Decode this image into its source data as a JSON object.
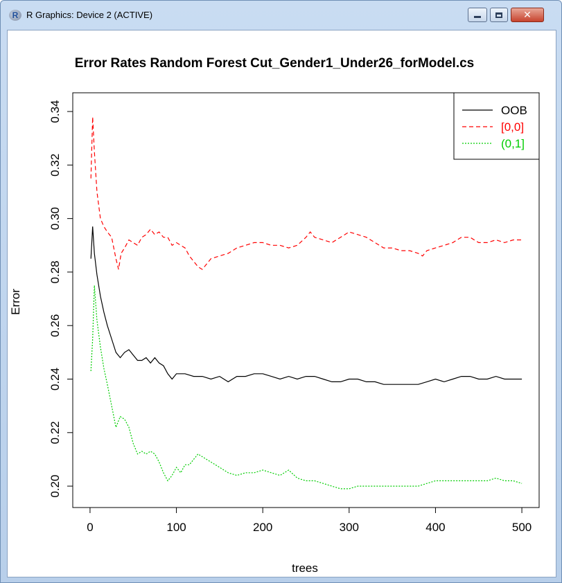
{
  "window": {
    "title": "R Graphics: Device 2 (ACTIVE)",
    "icon": "r-logo-icon",
    "icon_letter": "R",
    "close_glyph": "✕"
  },
  "chart_data": {
    "type": "line",
    "title": "Error Rates Random Forest Cut_Gender1_Under26_forModel.cs",
    "xlabel": "trees",
    "ylabel": "Error",
    "xlim": [
      -20,
      520
    ],
    "ylim": [
      0.192,
      0.347
    ],
    "xticks": [
      0,
      100,
      200,
      300,
      400,
      500
    ],
    "yticks": [
      0.2,
      0.22,
      0.24,
      0.26,
      0.28,
      0.3,
      0.32,
      0.34
    ],
    "legend_position": "top-right",
    "series": [
      {
        "name": "OOB",
        "color": "#000000",
        "dash": "solid",
        "points": [
          [
            1,
            0.285
          ],
          [
            3,
            0.297
          ],
          [
            5,
            0.287
          ],
          [
            8,
            0.279
          ],
          [
            12,
            0.271
          ],
          [
            16,
            0.265
          ],
          [
            20,
            0.26
          ],
          [
            25,
            0.255
          ],
          [
            30,
            0.25
          ],
          [
            35,
            0.248
          ],
          [
            40,
            0.25
          ],
          [
            45,
            0.251
          ],
          [
            50,
            0.249
          ],
          [
            55,
            0.247
          ],
          [
            60,
            0.247
          ],
          [
            65,
            0.248
          ],
          [
            70,
            0.246
          ],
          [
            75,
            0.248
          ],
          [
            80,
            0.246
          ],
          [
            85,
            0.245
          ],
          [
            90,
            0.242
          ],
          [
            95,
            0.24
          ],
          [
            100,
            0.242
          ],
          [
            110,
            0.242
          ],
          [
            120,
            0.241
          ],
          [
            130,
            0.241
          ],
          [
            140,
            0.24
          ],
          [
            150,
            0.241
          ],
          [
            160,
            0.239
          ],
          [
            170,
            0.241
          ],
          [
            180,
            0.241
          ],
          [
            190,
            0.242
          ],
          [
            200,
            0.242
          ],
          [
            210,
            0.241
          ],
          [
            220,
            0.24
          ],
          [
            230,
            0.241
          ],
          [
            240,
            0.24
          ],
          [
            250,
            0.241
          ],
          [
            260,
            0.241
          ],
          [
            270,
            0.24
          ],
          [
            280,
            0.239
          ],
          [
            290,
            0.239
          ],
          [
            300,
            0.24
          ],
          [
            310,
            0.24
          ],
          [
            320,
            0.239
          ],
          [
            330,
            0.239
          ],
          [
            340,
            0.238
          ],
          [
            350,
            0.238
          ],
          [
            360,
            0.238
          ],
          [
            370,
            0.238
          ],
          [
            380,
            0.238
          ],
          [
            390,
            0.239
          ],
          [
            400,
            0.24
          ],
          [
            410,
            0.239
          ],
          [
            420,
            0.24
          ],
          [
            430,
            0.241
          ],
          [
            440,
            0.241
          ],
          [
            450,
            0.24
          ],
          [
            460,
            0.24
          ],
          [
            470,
            0.241
          ],
          [
            480,
            0.24
          ],
          [
            490,
            0.24
          ],
          [
            500,
            0.24
          ]
        ]
      },
      {
        "name": "[0,0]",
        "color": "#ff0000",
        "dash": "dashed",
        "points": [
          [
            1,
            0.315
          ],
          [
            3,
            0.338
          ],
          [
            5,
            0.325
          ],
          [
            8,
            0.31
          ],
          [
            12,
            0.3
          ],
          [
            16,
            0.297
          ],
          [
            20,
            0.295
          ],
          [
            25,
            0.293
          ],
          [
            30,
            0.285
          ],
          [
            33,
            0.281
          ],
          [
            36,
            0.287
          ],
          [
            40,
            0.289
          ],
          [
            45,
            0.292
          ],
          [
            50,
            0.291
          ],
          [
            55,
            0.29
          ],
          [
            60,
            0.293
          ],
          [
            65,
            0.294
          ],
          [
            70,
            0.296
          ],
          [
            75,
            0.294
          ],
          [
            80,
            0.295
          ],
          [
            85,
            0.293
          ],
          [
            90,
            0.293
          ],
          [
            95,
            0.29
          ],
          [
            100,
            0.291
          ],
          [
            105,
            0.29
          ],
          [
            110,
            0.289
          ],
          [
            115,
            0.286
          ],
          [
            120,
            0.284
          ],
          [
            125,
            0.282
          ],
          [
            130,
            0.281
          ],
          [
            135,
            0.283
          ],
          [
            140,
            0.285
          ],
          [
            150,
            0.286
          ],
          [
            160,
            0.287
          ],
          [
            170,
            0.289
          ],
          [
            180,
            0.29
          ],
          [
            190,
            0.291
          ],
          [
            200,
            0.291
          ],
          [
            210,
            0.29
          ],
          [
            220,
            0.29
          ],
          [
            230,
            0.289
          ],
          [
            240,
            0.29
          ],
          [
            250,
            0.293
          ],
          [
            255,
            0.295
          ],
          [
            260,
            0.293
          ],
          [
            270,
            0.292
          ],
          [
            280,
            0.291
          ],
          [
            290,
            0.293
          ],
          [
            300,
            0.295
          ],
          [
            310,
            0.294
          ],
          [
            320,
            0.293
          ],
          [
            330,
            0.291
          ],
          [
            340,
            0.289
          ],
          [
            350,
            0.289
          ],
          [
            360,
            0.288
          ],
          [
            370,
            0.288
          ],
          [
            380,
            0.287
          ],
          [
            385,
            0.286
          ],
          [
            390,
            0.288
          ],
          [
            400,
            0.289
          ],
          [
            410,
            0.29
          ],
          [
            420,
            0.291
          ],
          [
            430,
            0.293
          ],
          [
            440,
            0.293
          ],
          [
            450,
            0.291
          ],
          [
            460,
            0.291
          ],
          [
            470,
            0.292
          ],
          [
            480,
            0.291
          ],
          [
            490,
            0.292
          ],
          [
            500,
            0.292
          ]
        ]
      },
      {
        "name": "(0,1]",
        "color": "#00cd00",
        "dash": "dotted",
        "points": [
          [
            1,
            0.243
          ],
          [
            3,
            0.255
          ],
          [
            5,
            0.275
          ],
          [
            8,
            0.262
          ],
          [
            12,
            0.252
          ],
          [
            16,
            0.244
          ],
          [
            20,
            0.238
          ],
          [
            25,
            0.23
          ],
          [
            30,
            0.222
          ],
          [
            35,
            0.226
          ],
          [
            40,
            0.225
          ],
          [
            45,
            0.222
          ],
          [
            50,
            0.216
          ],
          [
            55,
            0.212
          ],
          [
            60,
            0.213
          ],
          [
            65,
            0.212
          ],
          [
            70,
            0.213
          ],
          [
            75,
            0.212
          ],
          [
            80,
            0.209
          ],
          [
            85,
            0.205
          ],
          [
            90,
            0.202
          ],
          [
            95,
            0.204
          ],
          [
            100,
            0.207
          ],
          [
            105,
            0.205
          ],
          [
            110,
            0.208
          ],
          [
            115,
            0.208
          ],
          [
            120,
            0.21
          ],
          [
            125,
            0.212
          ],
          [
            130,
            0.211
          ],
          [
            140,
            0.209
          ],
          [
            150,
            0.207
          ],
          [
            160,
            0.205
          ],
          [
            170,
            0.204
          ],
          [
            180,
            0.205
          ],
          [
            190,
            0.205
          ],
          [
            200,
            0.206
          ],
          [
            210,
            0.205
          ],
          [
            220,
            0.204
          ],
          [
            230,
            0.206
          ],
          [
            240,
            0.203
          ],
          [
            250,
            0.202
          ],
          [
            260,
            0.202
          ],
          [
            270,
            0.201
          ],
          [
            280,
            0.2
          ],
          [
            290,
            0.199
          ],
          [
            300,
            0.199
          ],
          [
            310,
            0.2
          ],
          [
            320,
            0.2
          ],
          [
            330,
            0.2
          ],
          [
            340,
            0.2
          ],
          [
            350,
            0.2
          ],
          [
            360,
            0.2
          ],
          [
            370,
            0.2
          ],
          [
            380,
            0.2
          ],
          [
            390,
            0.201
          ],
          [
            400,
            0.202
          ],
          [
            410,
            0.202
          ],
          [
            420,
            0.202
          ],
          [
            430,
            0.202
          ],
          [
            440,
            0.202
          ],
          [
            450,
            0.202
          ],
          [
            460,
            0.202
          ],
          [
            470,
            0.203
          ],
          [
            480,
            0.202
          ],
          [
            490,
            0.202
          ],
          [
            500,
            0.201
          ]
        ]
      }
    ]
  }
}
